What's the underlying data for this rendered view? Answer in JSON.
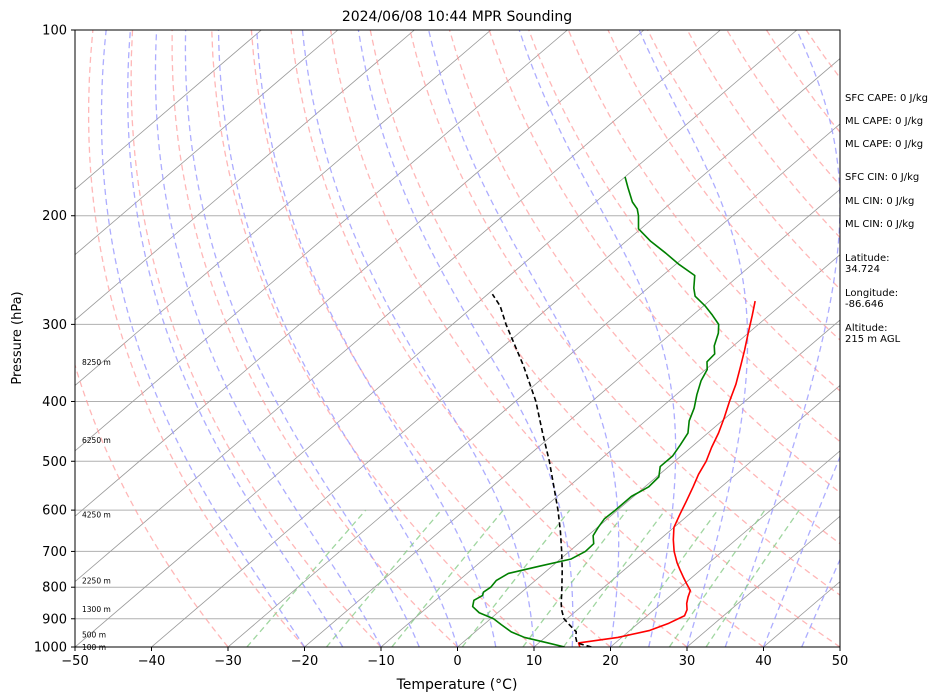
{
  "chart_data": {
    "type": "line",
    "title": "2024/06/08 10:44 MPR Sounding",
    "xlabel": "Temperature (°C)",
    "ylabel": "Pressure (hPa)",
    "xlim": [
      -50,
      50
    ],
    "ylim": [
      1000,
      100
    ],
    "y_scale": "log",
    "skew": "skew-T (isotherms tilted)",
    "grid": true,
    "x_ticks": [
      -50,
      -40,
      -30,
      -20,
      -10,
      0,
      10,
      20,
      30,
      40,
      50
    ],
    "x_tick_labels": [
      "−50",
      "−40",
      "−30",
      "−20",
      "−10",
      "0",
      "10",
      "20",
      "30",
      "40",
      "50"
    ],
    "y_ticks": [
      1000,
      900,
      800,
      700,
      600,
      500,
      400,
      300,
      200,
      100
    ],
    "y_tick_labels": [
      "1000",
      "900",
      "800",
      "700",
      "600",
      "500",
      "400",
      "300",
      "200",
      "100"
    ],
    "height_labels": [
      {
        "text": "100 m",
        "p": 1000
      },
      {
        "text": "500 m",
        "p": 955
      },
      {
        "text": "1300 m",
        "p": 868
      },
      {
        "text": "2250 m",
        "p": 780
      },
      {
        "text": "4250 m",
        "p": 610
      },
      {
        "text": "6250 m",
        "p": 462
      },
      {
        "text": "8250 m",
        "p": 345
      }
    ],
    "series": [
      {
        "color": "#ff0000",
        "points": [
          [
            1000,
            16.0
          ],
          [
            985,
            15.2
          ],
          [
            965,
            19.5
          ],
          [
            940,
            22.6
          ],
          [
            915,
            24.0
          ],
          [
            890,
            24.9
          ],
          [
            870,
            24.3
          ],
          [
            850,
            23.3
          ],
          [
            830,
            22.5
          ],
          [
            810,
            21.8
          ],
          [
            790,
            20.3
          ],
          [
            770,
            18.8
          ],
          [
            750,
            17.3
          ],
          [
            730,
            15.8
          ],
          [
            700,
            13.7
          ],
          [
            670,
            11.8
          ],
          [
            640,
            10.0
          ],
          [
            610,
            8.8
          ],
          [
            580,
            7.6
          ],
          [
            550,
            6.3
          ],
          [
            525,
            5.1
          ],
          [
            500,
            4.1
          ],
          [
            475,
            2.7
          ],
          [
            450,
            1.4
          ],
          [
            425,
            -0.2
          ],
          [
            400,
            -2.0
          ],
          [
            375,
            -3.8
          ],
          [
            350,
            -6.0
          ],
          [
            330,
            -7.9
          ],
          [
            310,
            -10.0
          ],
          [
            290,
            -12.2
          ],
          [
            275,
            -14.0
          ]
        ]
      },
      {
        "color": "#008000",
        "points": [
          [
            1000,
            14.0
          ],
          [
            985,
            11.2
          ],
          [
            965,
            7.3
          ],
          [
            945,
            4.7
          ],
          [
            920,
            2.3
          ],
          [
            900,
            0.4
          ],
          [
            880,
            -2.4
          ],
          [
            860,
            -4.2
          ],
          [
            840,
            -5.0
          ],
          [
            825,
            -4.6
          ],
          [
            815,
            -5.0
          ],
          [
            800,
            -4.8
          ],
          [
            780,
            -5.1
          ],
          [
            760,
            -4.6
          ],
          [
            740,
            -1.7
          ],
          [
            720,
            1.4
          ],
          [
            700,
            2.1
          ],
          [
            680,
            2.0
          ],
          [
            660,
            0.7
          ],
          [
            640,
            0.1
          ],
          [
            620,
            -0.4
          ],
          [
            600,
            -0.3
          ],
          [
            570,
            -0.3
          ],
          [
            550,
            0.5
          ],
          [
            530,
            0.3
          ],
          [
            510,
            -1.1
          ],
          [
            490,
            -1.1
          ],
          [
            470,
            -1.8
          ],
          [
            450,
            -2.6
          ],
          [
            430,
            -4.3
          ],
          [
            410,
            -5.6
          ],
          [
            390,
            -7.3
          ],
          [
            370,
            -8.9
          ],
          [
            355,
            -9.8
          ],
          [
            345,
            -11.0
          ],
          [
            335,
            -11.2
          ],
          [
            325,
            -12.5
          ],
          [
            310,
            -13.9
          ],
          [
            300,
            -15.2
          ],
          [
            290,
            -17.4
          ],
          [
            280,
            -19.8
          ],
          [
            270,
            -22.6
          ],
          [
            262,
            -24.0
          ],
          [
            250,
            -25.8
          ],
          [
            240,
            -29.5
          ],
          [
            230,
            -33.0
          ],
          [
            220,
            -36.8
          ],
          [
            210,
            -40.3
          ],
          [
            200,
            -42.3
          ],
          [
            195,
            -43.5
          ],
          [
            190,
            -45.2
          ],
          [
            180,
            -48.0
          ],
          [
            173,
            -50.0
          ]
        ]
      },
      {
        "color": "#000000",
        "dashed": true,
        "points": [
          [
            1000,
            17.5
          ],
          [
            985,
            15.0
          ],
          [
            965,
            14.0
          ],
          [
            945,
            13.2
          ],
          [
            920,
            11.2
          ],
          [
            900,
            9.6
          ],
          [
            870,
            7.9
          ],
          [
            850,
            6.9
          ],
          [
            800,
            4.5
          ],
          [
            750,
            1.9
          ],
          [
            700,
            -1.0
          ],
          [
            650,
            -4.2
          ],
          [
            600,
            -7.8
          ],
          [
            550,
            -11.9
          ],
          [
            500,
            -16.4
          ],
          [
            450,
            -21.6
          ],
          [
            400,
            -27.3
          ],
          [
            350,
            -34.4
          ],
          [
            300,
            -43.0
          ],
          [
            280,
            -46.6
          ],
          [
            268,
            -49.4
          ]
        ]
      }
    ]
  },
  "side_panel": {
    "sfc_cape": "SFC CAPE: 0 J/kg",
    "ml_cape_1": "ML CAPE: 0 J/kg",
    "ml_cape_2": "ML CAPE: 0 J/kg",
    "sfc_cin": "SFC CIN: 0 J/kg",
    "ml_cin_1": "ML CIN: 0 J/kg",
    "ml_cin_2": "ML CIN: 0 J/kg",
    "latitude_label": "Latitude:",
    "latitude_value": "34.724",
    "longitude_label": "Longitude:",
    "longitude_value": "-86.646",
    "altitude_label": "Altitude:",
    "altitude_value": "215 m AGL"
  },
  "colors": {
    "dry_adiabat": "#ff9999",
    "moist_adiabat": "#9999ff",
    "mixing_ratio": "#88cc88",
    "isotherm": "#999999"
  }
}
